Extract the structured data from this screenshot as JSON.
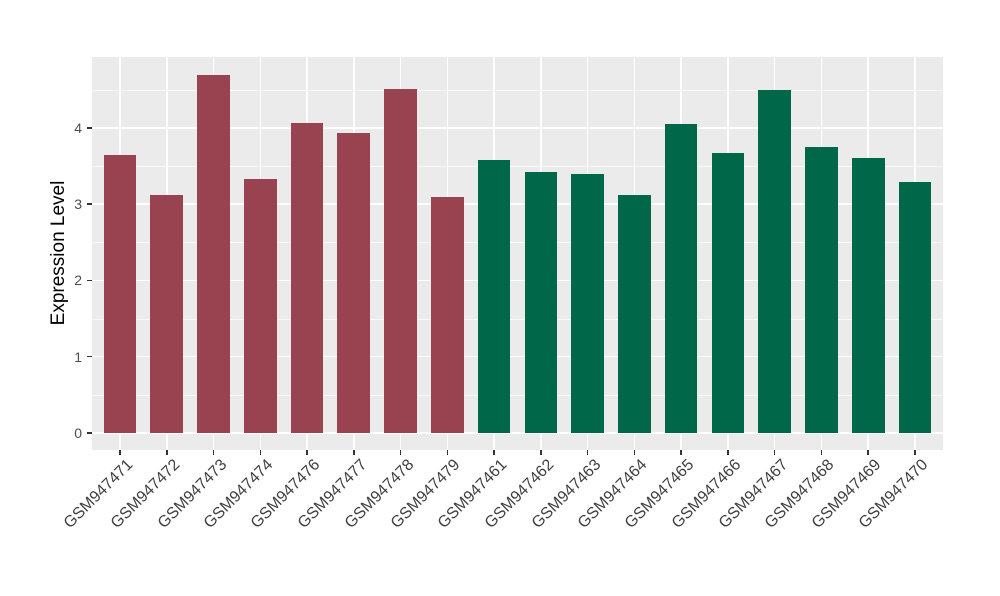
{
  "chart_data": {
    "type": "bar",
    "title": "",
    "xlabel": "",
    "ylabel": "Expression Level",
    "categories": [
      "GSM947471",
      "GSM947472",
      "GSM947473",
      "GSM947474",
      "GSM947476",
      "GSM947477",
      "GSM947478",
      "GSM947479",
      "GSM947461",
      "GSM947462",
      "GSM947463",
      "GSM947464",
      "GSM947465",
      "GSM947466",
      "GSM947467",
      "GSM947468",
      "GSM947469",
      "GSM947470"
    ],
    "values": [
      3.65,
      3.12,
      4.69,
      3.33,
      4.06,
      3.93,
      4.51,
      3.09,
      3.58,
      3.42,
      3.4,
      3.12,
      4.05,
      3.67,
      4.49,
      3.75,
      3.6,
      3.29
    ],
    "bar_colors": [
      "#9A4350",
      "#9A4350",
      "#9A4350",
      "#9A4350",
      "#9A4350",
      "#9A4350",
      "#9A4350",
      "#9A4350",
      "#016749",
      "#016749",
      "#016749",
      "#016749",
      "#016749",
      "#016749",
      "#016749",
      "#016749",
      "#016749",
      "#016749"
    ],
    "groups": [
      {
        "name": "red-group",
        "color": "#9A4350",
        "count": 8
      },
      {
        "name": "green-group",
        "color": "#016749",
        "count": 10
      }
    ],
    "yticks": [
      "0",
      "1",
      "2",
      "3",
      "4"
    ],
    "ytick_values": [
      0,
      1,
      2,
      3,
      4
    ],
    "minor_tick_values": [
      0.5,
      1.5,
      2.5,
      3.5,
      4.5
    ],
    "ylim": [
      -0.24,
      4.92
    ],
    "grid": "major-and-minor-white-on-gray",
    "legend": "none",
    "panel_bg": "#EBEBEB",
    "grid_color": "#FFFFFF",
    "tick_color": "#333333",
    "axis_text_color": "#4D4D4D"
  }
}
